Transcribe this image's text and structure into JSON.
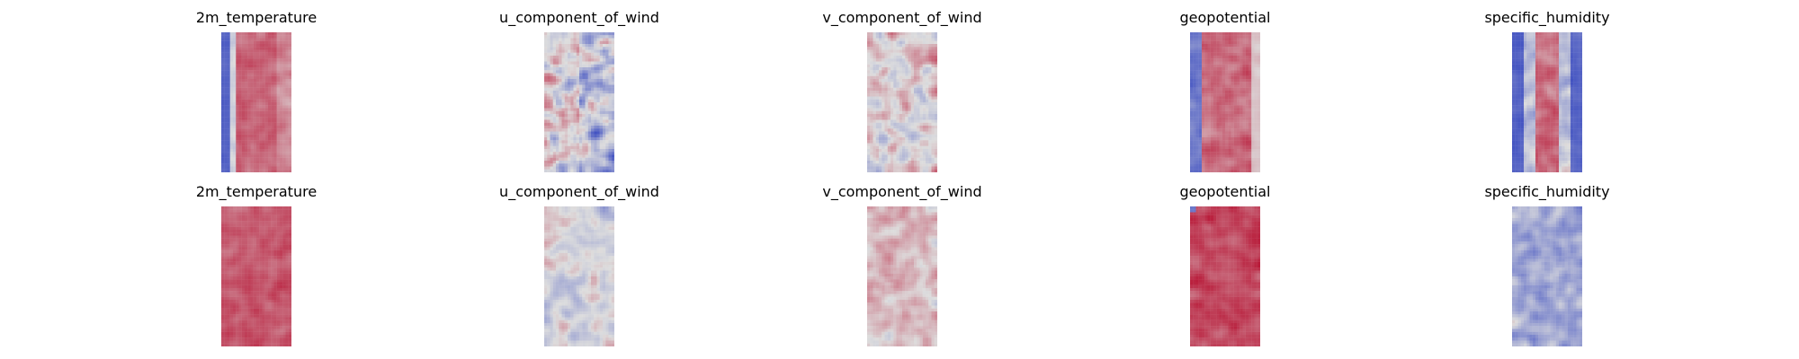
{
  "figure": {
    "colormap": "coolwarm",
    "colors": {
      "cold": "#3b4cc0",
      "neutral": "#dddddd",
      "warm": "#b40426"
    },
    "rows": [
      {
        "panels": [
          {
            "title": "2m_temperature",
            "pattern": "warm_core_cold_left"
          },
          {
            "title": "u_component_of_wind",
            "pattern": "wind_mixed"
          },
          {
            "title": "v_component_of_wind",
            "pattern": "wind_light"
          },
          {
            "title": "geopotential",
            "pattern": "warm_core_cold_edges"
          },
          {
            "title": "specific_humidity",
            "pattern": "humid_core_cold_edges"
          }
        ]
      },
      {
        "panels": [
          {
            "title": "2m_temperature",
            "pattern": "warm_uniform"
          },
          {
            "title": "u_component_of_wind",
            "pattern": "wind_faint"
          },
          {
            "title": "v_component_of_wind",
            "pattern": "wind_faint_warm"
          },
          {
            "title": "geopotential",
            "pattern": "warm_uniform_dark"
          },
          {
            "title": "specific_humidity",
            "pattern": "cool_speckled"
          }
        ]
      }
    ]
  }
}
